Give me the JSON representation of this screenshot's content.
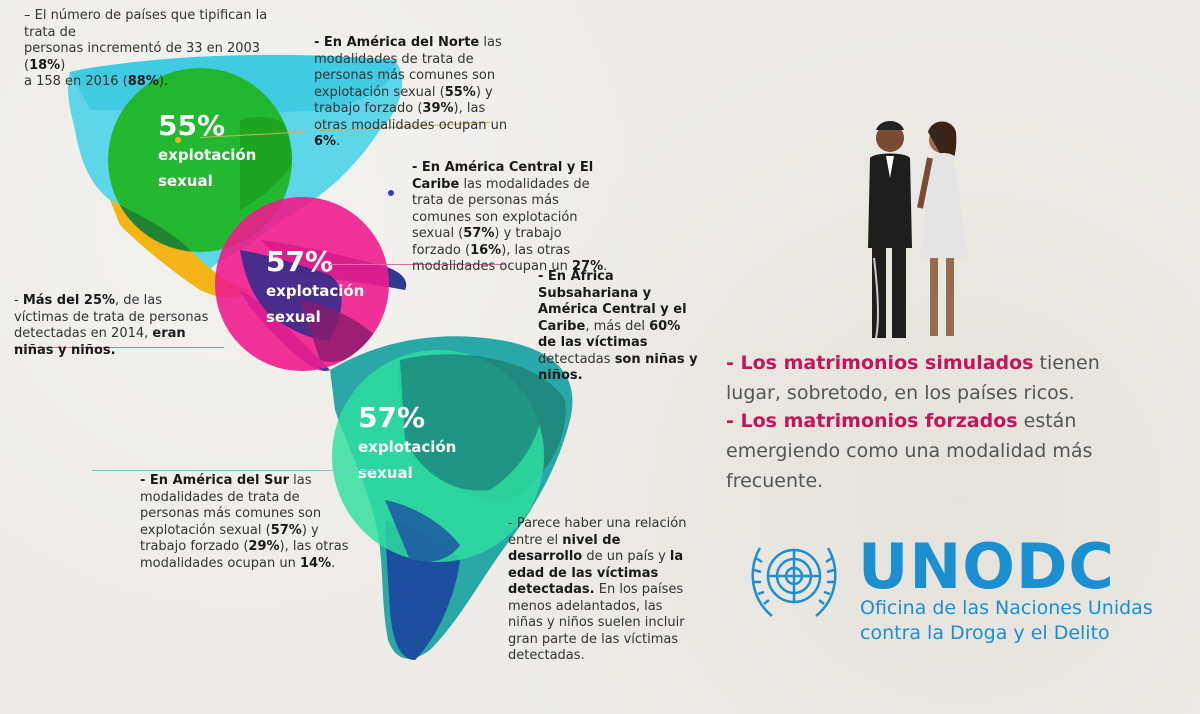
{
  "notes": {
    "countries": [
      "– El número de países que tipifican la trata de",
      "personas incrementó de 33 en 2003 (",
      "18%",
      ")",
      "a 158 en 2016 (",
      "88%",
      ")."
    ],
    "north_america": [
      "- En América del Norte",
      " las modalidades de trata de personas más comunes son explotación sexual (",
      "55%",
      ") y trabajo forzado (",
      "39%",
      "), las otras modalidades ocupan un ",
      "6%",
      "."
    ],
    "central_america": [
      "- En América Central y El Caribe",
      " las modalidades de trata de personas más comunes son explotación sexual (",
      "57%",
      ") y trabajo forzado (",
      "16%",
      "), las otras modalidades ocupan un ",
      "27%",
      "."
    ],
    "children_2014": [
      "- ",
      "Más del 25%",
      ", de las víctimas de trata de personas detectadas en 2014, ",
      "eran niñas y niños."
    ],
    "africa": [
      "- En África Subsahariana y América Central y el Caribe",
      ", más del ",
      "60% de las víctimas",
      " detectadas ",
      "son niñas y niños."
    ],
    "south_america": [
      "- En América del Sur",
      " las modalidades de trata de personas más comunes son explotación sexual (",
      "57%",
      ") y trabajo forzado (",
      "29%",
      "), las otras modalidades ocupan un ",
      "14%",
      "."
    ],
    "development": [
      "- Parece haber una relación entre el ",
      "nivel de desarrollo",
      " de un país y ",
      "la edad de las víctimas detectadas.",
      " En los países menos adelantados, las niñas y niños suelen incluir gran parte de las víctimas detectadas."
    ]
  },
  "bubbles": [
    {
      "pct": "55%",
      "word1": "explotación",
      "word2": "sexual",
      "color": "#1fb41f"
    },
    {
      "pct": "57%",
      "word1": "explotación",
      "word2": "sexual",
      "color": "#ee1c8e"
    },
    {
      "pct": "57%",
      "word1": "explotación",
      "word2": "sexual",
      "color": "#2ee0a0"
    }
  ],
  "marriage": {
    "line1_dash": "- ",
    "line1_strong": "Los matrimonios simulados",
    "line1_rest": " tienen lugar, sobretodo, en los países ricos.",
    "line2_dash": "- ",
    "line2_strong": "Los matrimonios forzados",
    "line2_rest": " están emergiendo como una modalidad más frecuente."
  },
  "brand": {
    "name": "UNODC",
    "sub1": "Oficina de las Naciones Unidas",
    "sub2": "contra la Droga y el Delito",
    "color": "#1b8fd0"
  },
  "colors": {
    "accent": "#c4145c",
    "north_color": "#6dd9e8",
    "south_color": "#1c4fa0"
  }
}
